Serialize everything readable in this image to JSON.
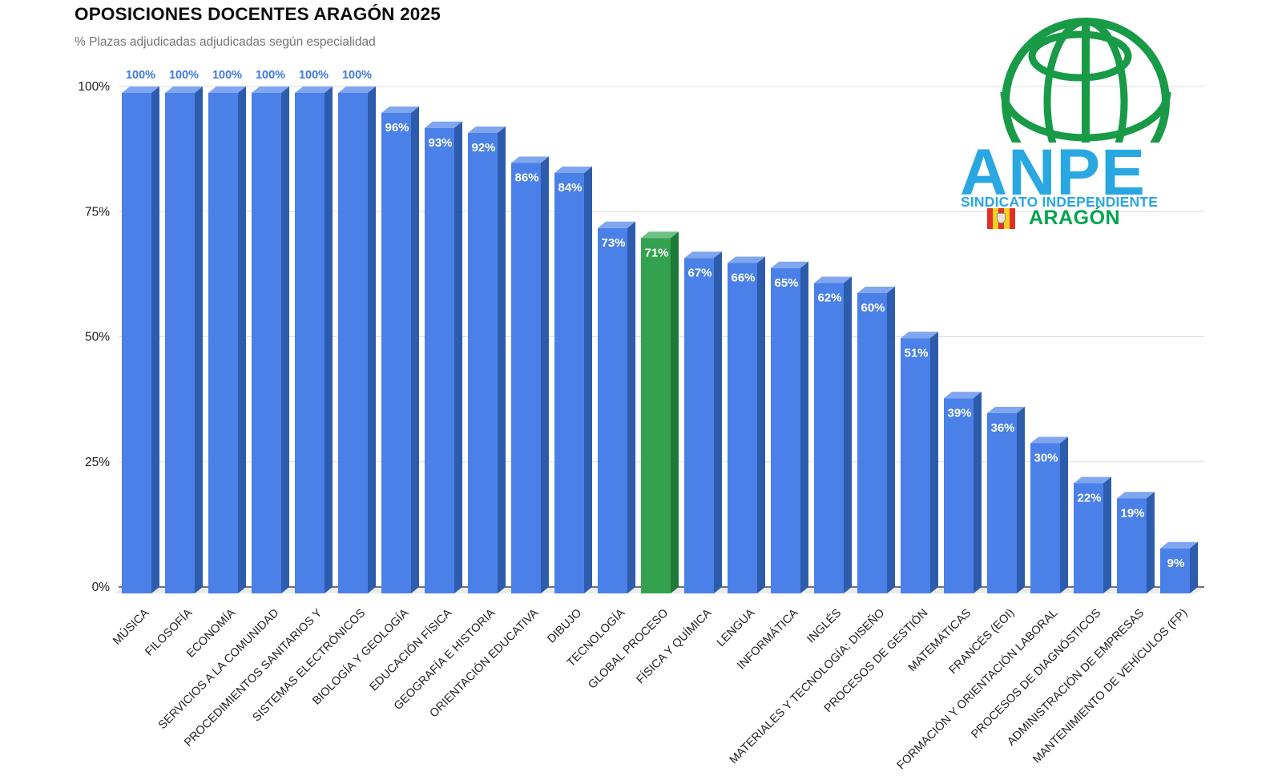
{
  "header": {
    "title": "OPOSICIONES DOCENTES ARAGÓN 2025",
    "subtitle": "% Plazas adjudicadas adjudicadas según especialidad"
  },
  "logo": {
    "brand": "ANPE",
    "tagline": "SINDICATO INDEPENDIENTE",
    "region": "ARAGÓN",
    "globe_color": "#189a47",
    "brand_color": "#29a7e1",
    "region_color": "#00a44e",
    "flag_colors": {
      "red": "#e03128",
      "yellow": "#f8cf1e"
    }
  },
  "chart_data": {
    "type": "bar",
    "title": "OPOSICIONES DOCENTES ARAGÓN 2025",
    "subtitle": "% Plazas adjudicadas adjudicadas según especialidad",
    "xlabel": "",
    "ylabel": "",
    "ylim": [
      0,
      100
    ],
    "grid": "horizontal",
    "legend": "none",
    "style": "3d-columns",
    "categories": [
      "MÚSICA",
      "FILOSOFÍA",
      "ECONOMÍA",
      "SERVICIOS A LA COMUNIDAD",
      "PROCEDIMIENTOS SANITARIOS Y",
      "SISTEMAS ELECTRÓNICOS",
      "BIOLOGÍA Y GEOLOGÍA",
      "EDUCACIÓN FÍSICA",
      "GEOGRAFÍA E HISTORIA",
      "ORIENTACIÓN EDUCATIVA",
      "DIBUJO",
      "TECNOLOGÍA",
      "GLOBAL PROCESO",
      "FÍSICA Y QUÍMICA",
      "LENGUA",
      "INFORMÁTICA",
      "INGLÉS",
      "MATERIALES Y TECNOLOGÍA: DISEÑO",
      "PROCESOS DE GESTIÓN",
      "MATEMÁTICAS",
      "FRANCÉS (EOI)",
      "FORMACIÓN Y ORIENTACIÓN LABORAL",
      "PROCESOS DE DIAGNÓSTICOS",
      "ADMINISTRACIÓN DE EMPRESAS",
      "MANTENIMIENTO DE VEHÍCULOS (FP)"
    ],
    "values": [
      100,
      100,
      100,
      100,
      100,
      100,
      96,
      93,
      92,
      86,
      84,
      73,
      71,
      67,
      66,
      65,
      62,
      60,
      51,
      39,
      36,
      30,
      22,
      19,
      9
    ],
    "value_label_suffix": "%",
    "highlight_index": 12,
    "highlight_category": "GLOBAL PROCESO",
    "y_ticks": [
      "0%",
      "25%",
      "50%",
      "75%",
      "100%"
    ],
    "y_tick_values": [
      0,
      25,
      50,
      75,
      100
    ],
    "colors": {
      "bar_front": "#4a80e8",
      "bar_side": "#2d5cad",
      "bar_top": "#7fa6ef",
      "highlight_front": "#34a14f",
      "highlight_side": "#1e7a38",
      "highlight_top": "#6dc182",
      "value_label_above": "#4079de",
      "value_label_inside": "#ffffff",
      "gridline": "#dcdcdc",
      "axis_line": "#454545",
      "floor": "#ebebeb",
      "tick_text": "#1b1b1b",
      "category_text": "#222222"
    }
  }
}
